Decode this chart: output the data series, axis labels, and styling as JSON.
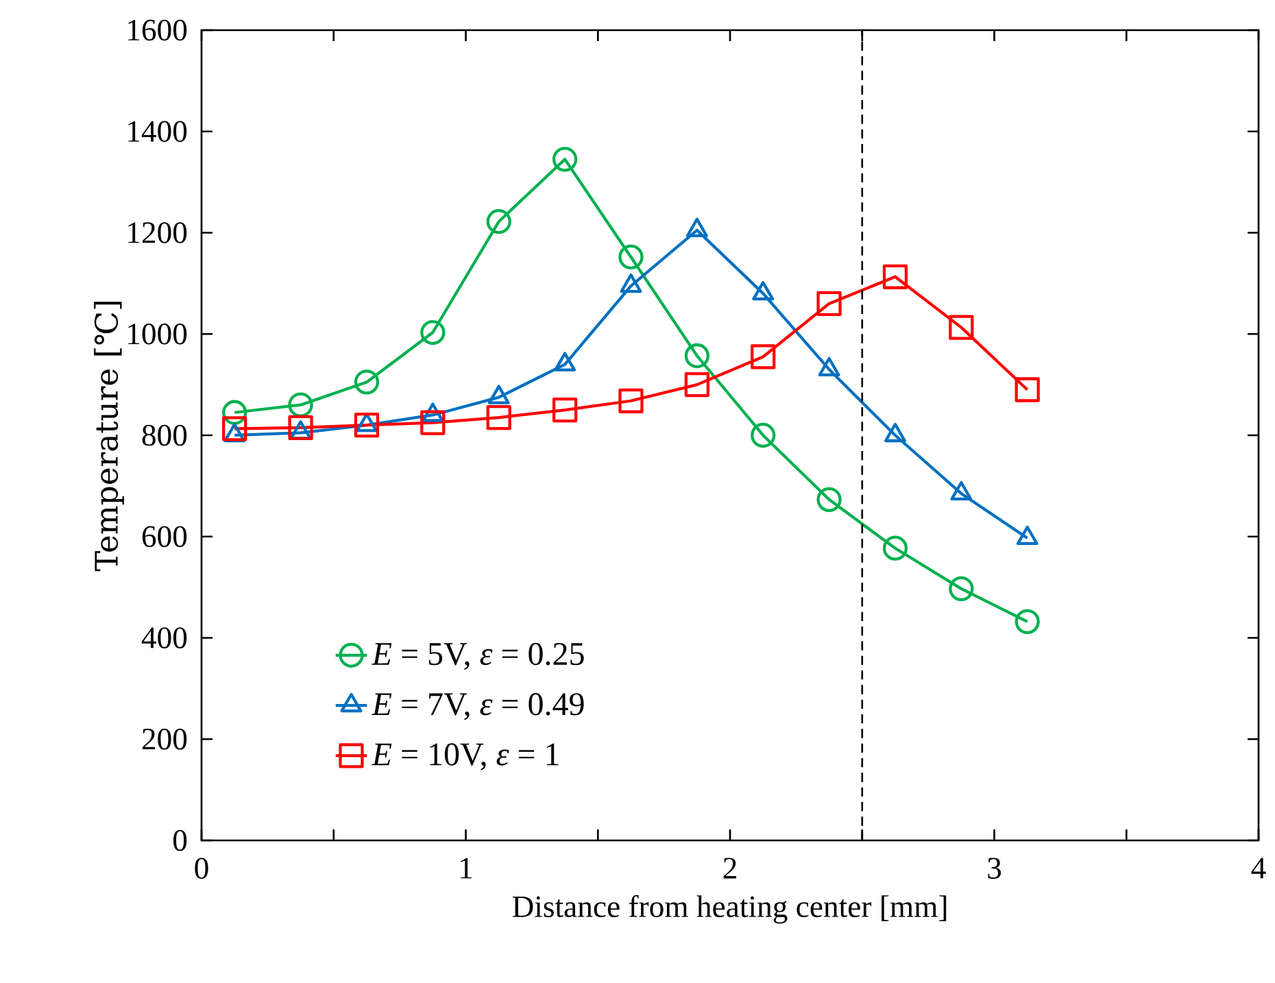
{
  "chart_data": {
    "type": "line",
    "xlabel": "Distance from heating center [mm]",
    "ylabel": "Temperature [℃]",
    "x": [
      0.125,
      0.375,
      0.625,
      0.875,
      1.125,
      1.375,
      1.625,
      1.875,
      2.125,
      2.375,
      2.625,
      2.875,
      3.125
    ],
    "series": [
      {
        "name": "*E* = 5V, *ε* = 0.25",
        "color": "#00b050",
        "marker": "circle",
        "values": [
          845,
          860,
          905,
          1003,
          1222,
          1345,
          1152,
          957,
          800,
          673,
          577,
          497,
          432
        ]
      },
      {
        "name": "*E* = 7V, *ε* = 0.49",
        "color": "#0070c0",
        "marker": "triangle",
        "values": [
          800,
          805,
          820,
          840,
          875,
          940,
          1095,
          1205,
          1080,
          930,
          800,
          685,
          597
        ]
      },
      {
        "name": "*E* = 10V, *ε* = 1",
        "color": "#ff0000",
        "marker": "square",
        "values": [
          813,
          815,
          820,
          825,
          835,
          850,
          868,
          900,
          955,
          1060,
          1113,
          1013,
          890
        ]
      }
    ],
    "xlim": [
      0,
      4
    ],
    "xticks": [
      0,
      1,
      2,
      3,
      4
    ],
    "ylim": [
      0,
      1600
    ],
    "yticks": [
      0,
      200,
      400,
      600,
      800,
      1000,
      1200,
      1400,
      1600
    ],
    "grid": false,
    "legend": "bottom left",
    "line_style": "solid",
    "ref_lines": [
      {
        "axis": "x",
        "value": 2.5,
        "line_style": "dashed",
        "color": "#000000"
      }
    ]
  }
}
